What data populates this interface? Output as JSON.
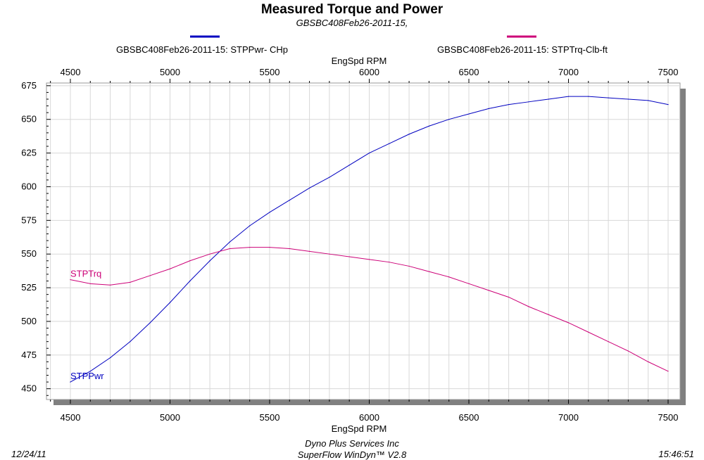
{
  "header": {
    "title": "Measured Torque and Power",
    "subtitle": "GBSBC408Feb26-2011-15,"
  },
  "footer": {
    "date": "12/24/11",
    "company": "Dyno Plus Services Inc",
    "software": "SuperFlow WinDyn™ V2.8",
    "time": "15:46:51"
  },
  "colors": {
    "power": "#0000c0",
    "torque": "#cc0077",
    "grid": "#d8d8d8",
    "shadow": "#808080"
  },
  "chart_data": {
    "type": "line",
    "title": "Measured Torque and Power",
    "subtitle": "GBSBC408Feb26-2011-15,",
    "xlabel": "EngSpd  RPM",
    "x_ticks": [
      "4500",
      "5000",
      "5500",
      "6000",
      "6500",
      "7000",
      "7500"
    ],
    "y_ticks": [
      "450",
      "475",
      "500",
      "525",
      "550",
      "575",
      "600",
      "625",
      "650",
      "675"
    ],
    "xlim": [
      4380,
      7560
    ],
    "ylim": [
      442,
      677
    ],
    "grid": true,
    "legend_position": "top",
    "series": [
      {
        "name": "GBSBC408Feb26-2011-15: STPPwr- CHp",
        "label": "STPPwr",
        "color": "#0000c0",
        "x": [
          4500,
          4600,
          4700,
          4800,
          4900,
          5000,
          5100,
          5200,
          5300,
          5400,
          5500,
          5600,
          5700,
          5800,
          5900,
          6000,
          6100,
          6200,
          6300,
          6400,
          6500,
          6600,
          6700,
          6800,
          6900,
          7000,
          7100,
          7200,
          7300,
          7400,
          7500
        ],
        "y": [
          455,
          463,
          473,
          485,
          499,
          514,
          530,
          545,
          559,
          571,
          581,
          590,
          599,
          607,
          616,
          625,
          632,
          639,
          645,
          650,
          654,
          658,
          661,
          663,
          665,
          667,
          667,
          666,
          665,
          664,
          661
        ]
      },
      {
        "name": "GBSBC408Feb26-2011-15: STPTrq-Clb-ft",
        "label": "STPTrq",
        "color": "#cc0077",
        "x": [
          4500,
          4600,
          4700,
          4800,
          4900,
          5000,
          5100,
          5200,
          5300,
          5400,
          5500,
          5600,
          5700,
          5800,
          5900,
          6000,
          6100,
          6200,
          6300,
          6400,
          6500,
          6600,
          6700,
          6800,
          6900,
          7000,
          7100,
          7200,
          7300,
          7400,
          7500
        ],
        "y": [
          531,
          528,
          527,
          529,
          534,
          539,
          545,
          550,
          554,
          555,
          555,
          554,
          552,
          550,
          548,
          546,
          544,
          541,
          537,
          533,
          528,
          523,
          518,
          511,
          505,
          499,
          492,
          485,
          478,
          470,
          463
        ]
      }
    ]
  }
}
